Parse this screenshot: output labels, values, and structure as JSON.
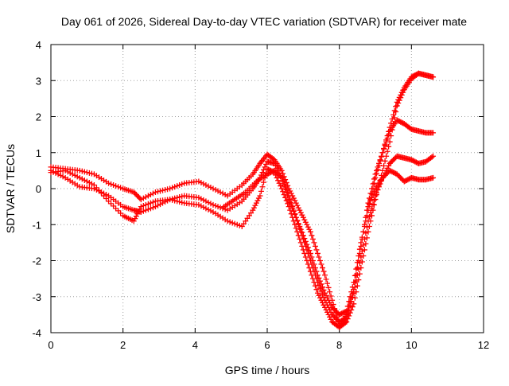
{
  "chart_data": {
    "type": "scatter",
    "title": "Day 061 of 2026, Sidereal Day-to-day VTEC variation (SDTVAR) for receiver mate",
    "xlabel": "GPS time / hours",
    "ylabel": "SDTVAR / TECUs",
    "xlim": [
      0,
      12
    ],
    "ylim": [
      -4,
      4
    ],
    "x_ticks": [
      0,
      2,
      4,
      6,
      8,
      10,
      12
    ],
    "y_ticks": [
      -4,
      -3,
      -2,
      -1,
      0,
      1,
      2,
      3,
      4
    ],
    "x_tick_labels": [
      "0",
      "2",
      "4",
      "6",
      "8",
      "10",
      "12"
    ],
    "y_tick_labels": [
      "-4",
      "-3",
      "-2",
      "-1",
      "0",
      "1",
      "2",
      "3",
      "4"
    ],
    "grid": true,
    "marker": "+",
    "color": "#ff0000",
    "series": [
      {
        "name": "trace-1",
        "x": [
          0.0,
          0.4,
          0.8,
          1.2,
          1.6,
          2.0,
          2.3,
          2.5,
          2.9,
          3.3,
          3.7,
          4.1,
          4.5,
          4.9,
          5.3,
          5.6,
          5.8,
          6.0,
          6.2,
          6.4,
          6.6,
          6.8,
          7.0,
          7.2,
          7.4,
          7.6,
          7.8,
          8.0,
          8.2,
          8.4,
          8.6,
          8.8,
          9.0,
          9.2,
          9.4,
          9.6,
          9.8,
          10.0,
          10.2,
          10.4,
          10.6
        ],
        "y": [
          0.6,
          0.55,
          0.5,
          0.4,
          0.15,
          0.0,
          -0.1,
          -0.3,
          -0.1,
          0.0,
          0.15,
          0.2,
          0.0,
          -0.2,
          0.1,
          0.4,
          0.7,
          0.95,
          0.8,
          0.5,
          0.0,
          -0.4,
          -0.8,
          -1.2,
          -1.8,
          -2.4,
          -3.1,
          -3.8,
          -3.5,
          -2.8,
          -1.6,
          -0.4,
          0.4,
          1.0,
          1.6,
          1.9,
          1.8,
          1.65,
          1.6,
          1.55,
          1.55
        ]
      },
      {
        "name": "trace-2",
        "x": [
          0.0,
          0.4,
          0.8,
          1.2,
          1.6,
          2.0,
          2.3,
          2.5,
          2.9,
          3.3,
          3.7,
          4.1,
          4.5,
          4.9,
          5.3,
          5.6,
          5.8,
          6.0,
          6.2,
          6.4,
          6.6,
          6.8,
          7.0,
          7.2,
          7.4,
          7.6,
          7.8,
          8.0,
          8.2,
          8.4,
          8.6,
          8.8,
          9.0,
          9.2,
          9.4,
          9.6,
          9.8,
          10.0,
          10.2,
          10.4,
          10.6
        ],
        "y": [
          0.5,
          0.3,
          0.05,
          0.0,
          -0.2,
          -0.5,
          -0.6,
          -0.65,
          -0.5,
          -0.3,
          -0.2,
          -0.25,
          -0.45,
          -0.6,
          -0.35,
          0.0,
          0.3,
          0.75,
          0.7,
          0.3,
          -0.2,
          -0.8,
          -1.4,
          -2.0,
          -2.6,
          -3.1,
          -3.5,
          -3.7,
          -3.6,
          -2.9,
          -1.9,
          -0.9,
          -0.2,
          0.3,
          0.7,
          0.9,
          0.85,
          0.8,
          0.7,
          0.75,
          0.9
        ]
      },
      {
        "name": "trace-3",
        "x": [
          0.0,
          0.4,
          0.8,
          1.2,
          1.6,
          2.0,
          2.3,
          2.5,
          2.9,
          3.3,
          3.7,
          4.1,
          4.5,
          4.9,
          5.3,
          5.6,
          5.8,
          6.0,
          6.2,
          6.4,
          6.6,
          6.8,
          7.0,
          7.2,
          7.4,
          7.6,
          7.8,
          8.0,
          8.2,
          8.4,
          8.6,
          8.8,
          9.0,
          9.2,
          9.4,
          9.6,
          9.8,
          10.0,
          10.2,
          10.4,
          10.6
        ],
        "y": [
          0.45,
          0.5,
          0.3,
          0.1,
          -0.35,
          -0.75,
          -0.9,
          -0.5,
          -0.35,
          -0.3,
          -0.4,
          -0.45,
          -0.65,
          -0.9,
          -1.05,
          -0.6,
          -0.2,
          0.55,
          0.45,
          0.0,
          -0.5,
          -1.1,
          -1.7,
          -2.3,
          -2.9,
          -3.3,
          -3.7,
          -3.85,
          -3.7,
          -3.2,
          -2.2,
          -1.2,
          -0.3,
          0.5,
          1.3,
          2.3,
          2.75,
          3.05,
          3.2,
          3.15,
          3.1
        ]
      },
      {
        "name": "trace-4",
        "x": [
          4.8,
          5.1,
          5.4,
          5.7,
          6.0,
          6.2,
          6.4,
          6.6,
          6.8,
          7.0,
          7.2,
          7.4,
          7.6,
          7.8,
          8.0,
          8.2,
          8.4,
          8.6,
          8.8,
          9.0,
          9.2,
          9.4,
          9.6,
          9.8,
          10.0,
          10.2,
          10.4,
          10.6
        ],
        "y": [
          -0.5,
          -0.3,
          -0.1,
          0.2,
          0.4,
          0.5,
          0.3,
          -0.3,
          -0.8,
          -1.3,
          -1.8,
          -2.4,
          -2.9,
          -3.3,
          -3.5,
          -3.4,
          -2.6,
          -1.5,
          -0.6,
          0.3,
          1.0,
          1.7,
          2.4,
          2.8,
          3.1,
          3.2,
          3.15,
          3.1
        ]
      },
      {
        "name": "trace-5",
        "x": [
          8.8,
          9.0,
          9.2,
          9.4,
          9.6,
          9.8,
          10.0,
          10.2,
          10.4,
          10.6
        ],
        "y": [
          -0.5,
          0.0,
          0.3,
          0.5,
          0.4,
          0.2,
          0.3,
          0.25,
          0.25,
          0.3
        ]
      }
    ]
  }
}
